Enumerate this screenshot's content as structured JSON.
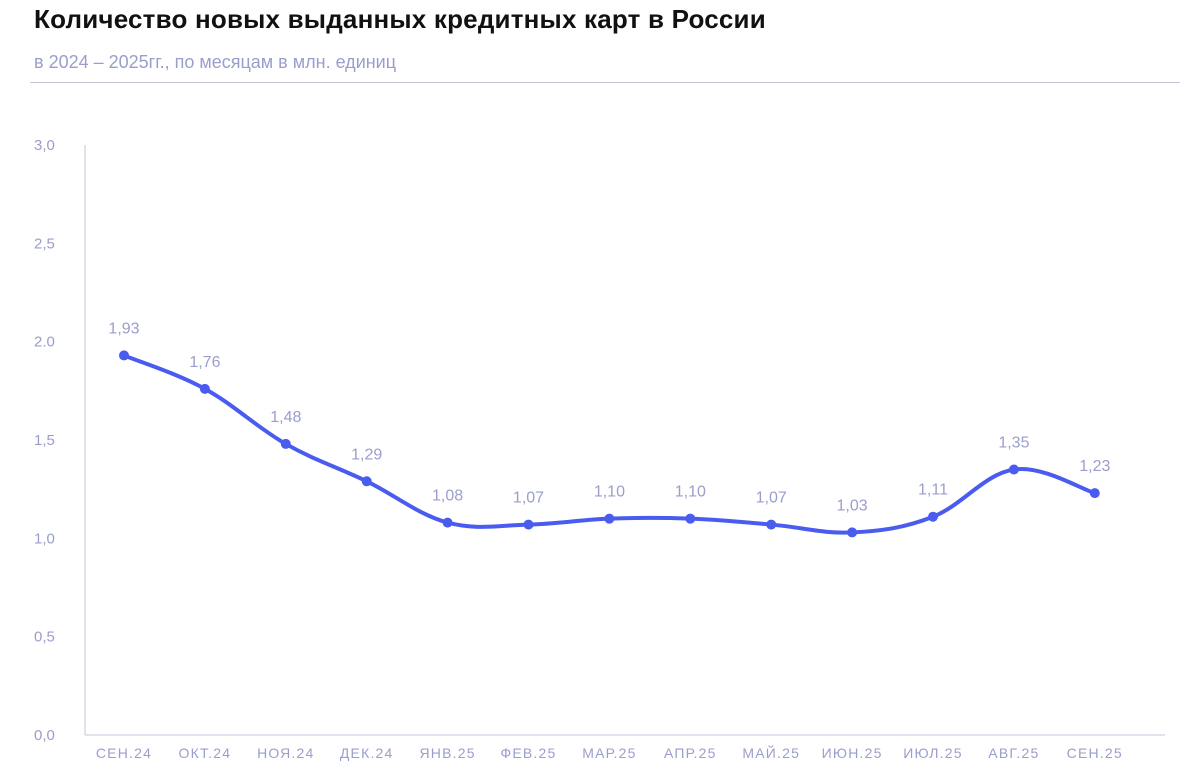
{
  "header": {
    "title": "Количество новых выданных кредитных карт в России",
    "subtitle": "в 2024 – 2025гг., по месяцам в млн. единиц"
  },
  "chart_data": {
    "type": "line",
    "title": "Количество новых выданных кредитных карт в России",
    "subtitle": "в 2024 – 2025гг., по месяцам в млн. единиц",
    "categories": [
      "СЕН.24",
      "ОКТ.24",
      "НОЯ.24",
      "ДЕК.24",
      "ЯНВ.25",
      "ФЕВ.25",
      "МАР.25",
      "АПР.25",
      "МАЙ.25",
      "ИЮН.25",
      "ИЮЛ.25",
      "АВГ.25",
      "СЕН.25"
    ],
    "values": [
      1.93,
      1.76,
      1.48,
      1.29,
      1.08,
      1.07,
      1.1,
      1.1,
      1.07,
      1.03,
      1.11,
      1.35,
      1.23
    ],
    "value_labels": [
      "1,93",
      "1,76",
      "1,48",
      "1,29",
      "1,08",
      "1,07",
      "1,10",
      "1,10",
      "1,07",
      "1,03",
      "1,11",
      "1,35",
      "1,23"
    ],
    "yticks": [
      0,
      0.5,
      1.0,
      1.5,
      2.0,
      2.5,
      3.0
    ],
    "ytick_labels": [
      "0,0",
      "0,5",
      "1,0",
      "1,5",
      "2.0",
      "2,5",
      "3,0"
    ],
    "ylim": [
      0,
      3.0
    ],
    "xlabel": "",
    "ylabel": "",
    "grid": false,
    "legend": "none",
    "line_color": "#4a5cf0",
    "text_color": "#9a9ecb",
    "axis_color": "#c4c6da"
  }
}
